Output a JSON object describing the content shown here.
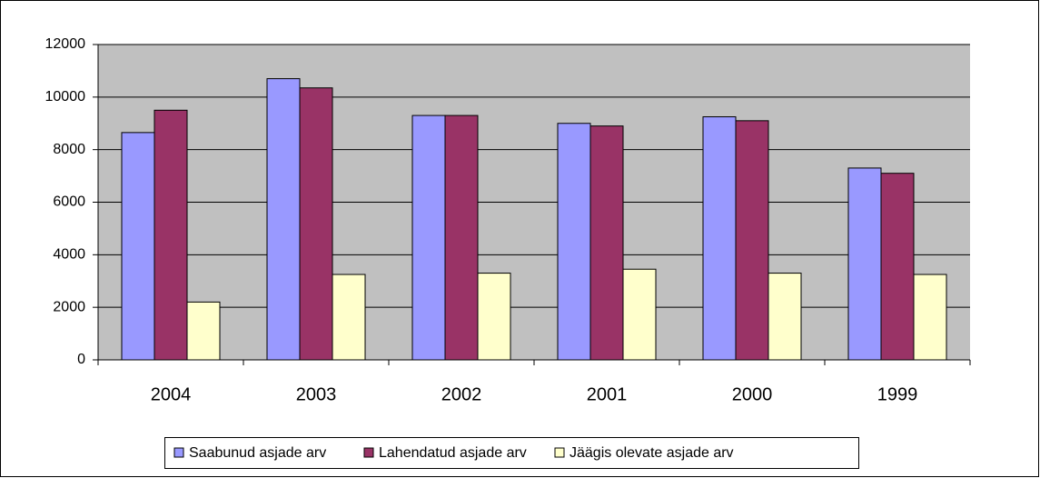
{
  "chart_data": {
    "type": "bar",
    "categories": [
      "2004",
      "2003",
      "2002",
      "2001",
      "2000",
      "1999"
    ],
    "series": [
      {
        "name": "Saabunud asjade arv",
        "color": "#9999ff",
        "values": [
          8650,
          10700,
          9300,
          9000,
          9250,
          7300
        ]
      },
      {
        "name": "Lahendatud asjade arv",
        "color": "#993366",
        "values": [
          9500,
          10350,
          9300,
          8900,
          9100,
          7100
        ]
      },
      {
        "name": "Jäägis olevate asjade arv",
        "color": "#ffffcc",
        "values": [
          2200,
          3250,
          3300,
          3450,
          3300,
          3250
        ]
      }
    ],
    "ylim": [
      0,
      12000
    ],
    "yticks": [
      0,
      2000,
      4000,
      6000,
      8000,
      10000,
      12000
    ],
    "grid": true,
    "plot_background": "#c0c0c0",
    "legend": "bottom"
  }
}
